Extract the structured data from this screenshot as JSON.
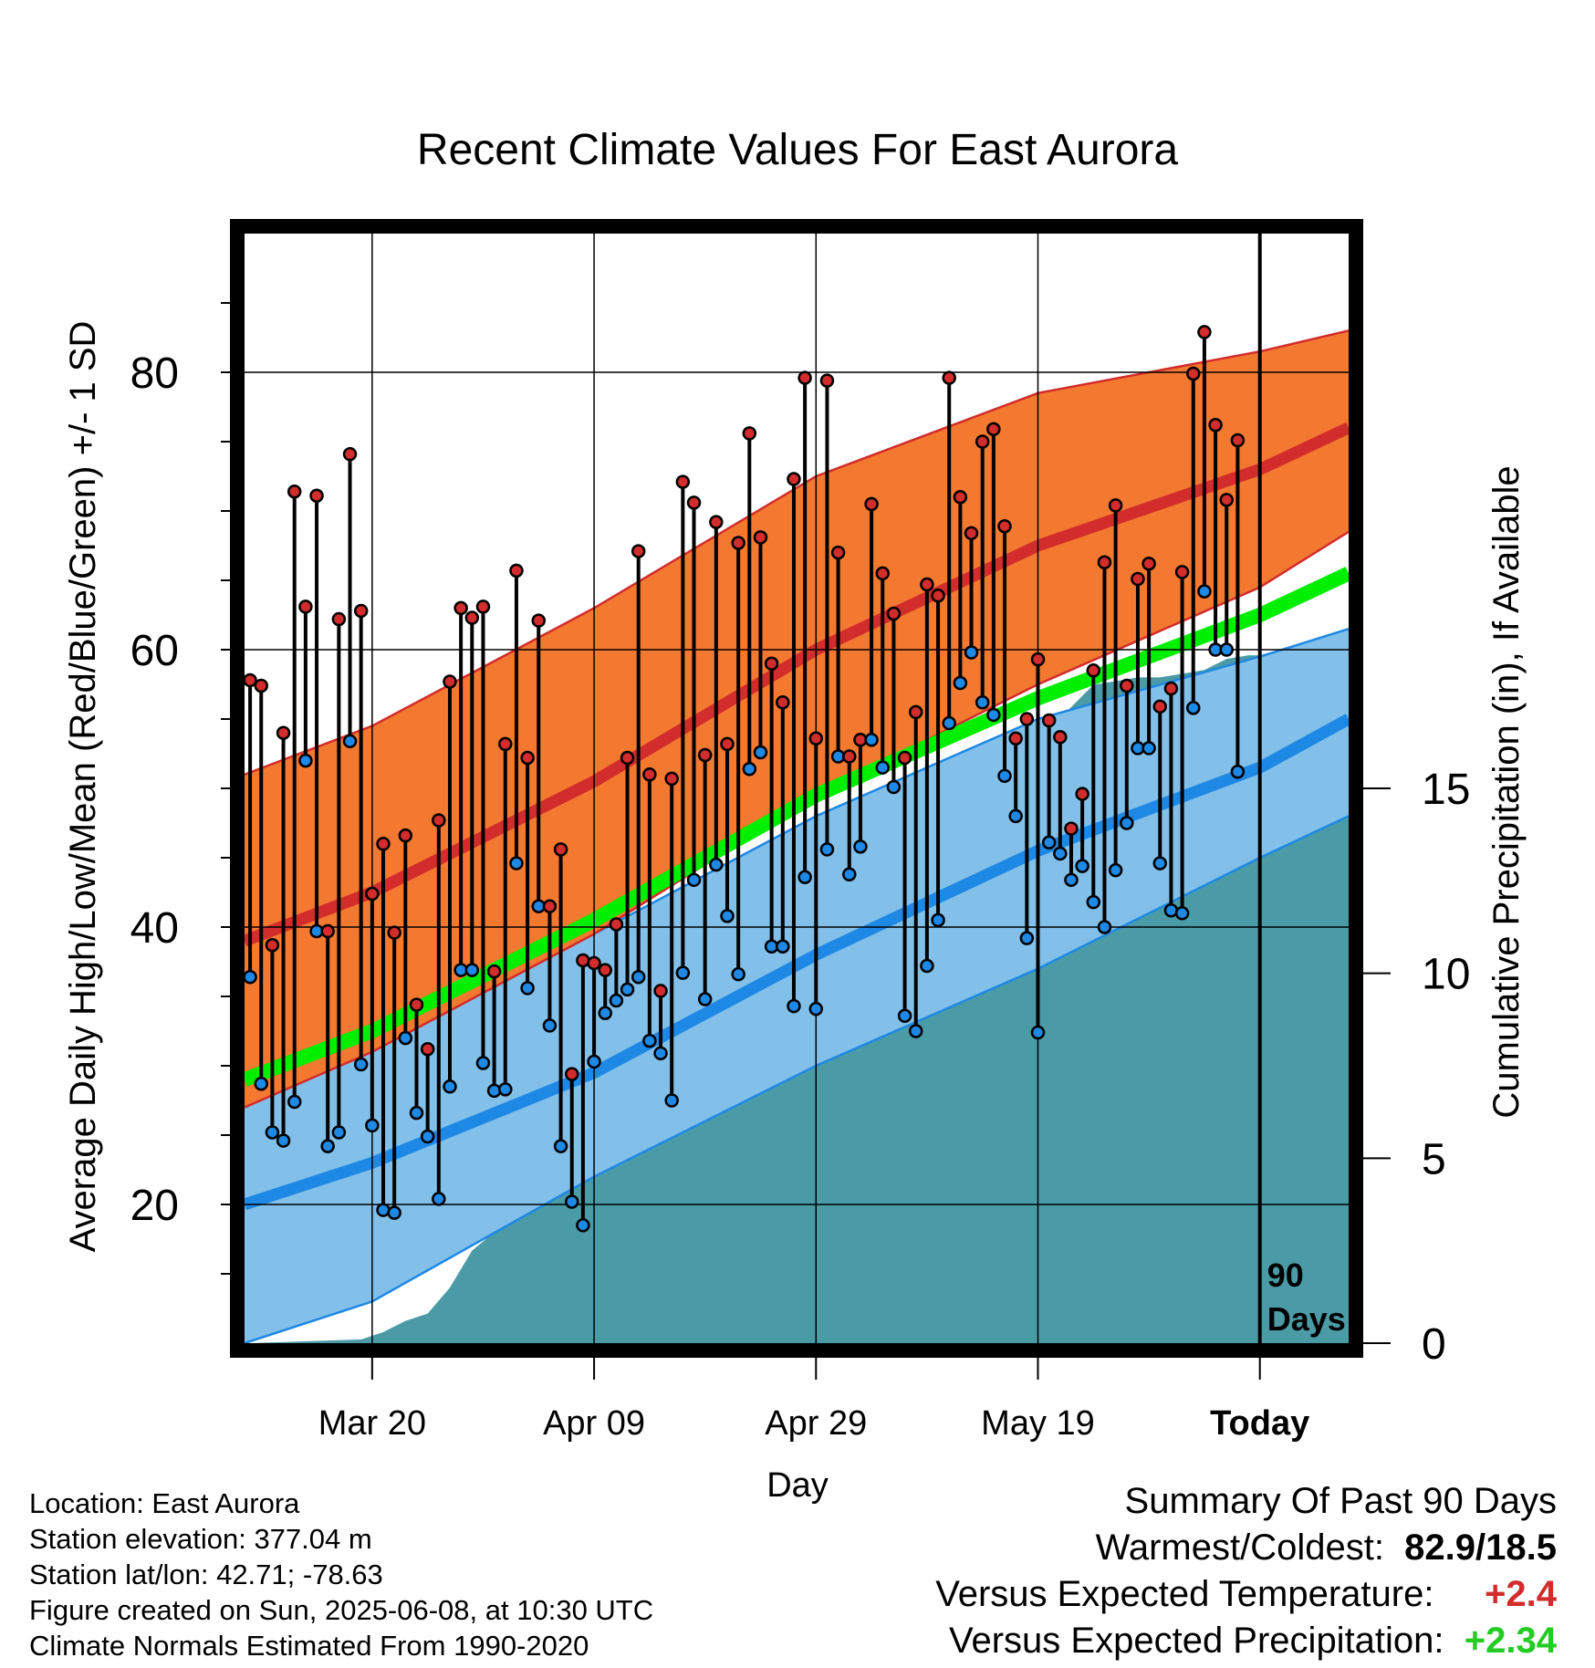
{
  "chart_data": {
    "type": "line",
    "title": "Recent Climate Values For East Aurora",
    "xlabel": "Day",
    "ylabel": "Average Daily High/Low/Mean (Red/Blue/Green) +/- 1 SD",
    "y2label": "Cumulative Precipitation (in), If Available",
    "ylim": [
      10,
      90
    ],
    "y2lim": [
      0,
      30
    ],
    "yticks": [
      20,
      40,
      60,
      80
    ],
    "y2ticks": [
      0,
      5,
      10,
      15
    ],
    "xticks": [
      {
        "day": 15,
        "label": "Mar 20"
      },
      {
        "day": 35,
        "label": "Apr 09"
      },
      {
        "day": 55,
        "label": "Apr 29"
      },
      {
        "day": 75,
        "label": "May 19"
      },
      {
        "day": 95,
        "label": "Today"
      }
    ],
    "x_range_days": [
      3.5,
      103
    ],
    "today_day": 95,
    "today_label_line1": "90",
    "today_label_line2": "Days",
    "grid": true,
    "colors": {
      "high_band": "#f47930",
      "high_band_edge": "#d22c2c",
      "normal_high": "#d22c2c",
      "low_band": "#82c0e9",
      "low_band_edge": "#1e88e5",
      "normal_low": "#1e88e5",
      "normal_mean": "#00ee00",
      "precip": "#4a9ba6",
      "high_dot": "#d22c2c",
      "low_dot": "#1e88e5"
    },
    "normals": {
      "days": [
        3.5,
        15,
        35,
        55,
        75,
        95,
        103
      ],
      "high_mean": [
        39,
        42.5,
        50.5,
        60,
        67.5,
        73,
        76
      ],
      "high_upper": [
        51,
        54.5,
        63,
        72.5,
        78.5,
        81.5,
        83
      ],
      "high_lower": [
        27,
        31,
        39.5,
        49.5,
        57.5,
        64.5,
        68.5
      ],
      "low_mean": [
        20,
        23,
        29.5,
        38,
        45.5,
        51.5,
        55
      ],
      "low_upper": [
        31,
        33,
        39.5,
        48,
        55,
        59.5,
        61.5
      ],
      "low_lower": [
        10,
        13,
        22,
        30,
        37,
        45,
        48
      ],
      "avg_mean": [
        29,
        32.5,
        40.5,
        49.5,
        56.5,
        62.5,
        65.5
      ]
    },
    "series": [
      {
        "name": "High",
        "x": [
          4,
          5,
          6,
          7,
          8,
          9,
          10,
          11,
          12,
          13,
          14,
          15,
          16,
          17,
          18,
          19,
          20,
          21,
          22,
          23,
          24,
          25,
          26,
          27,
          28,
          29,
          30,
          31,
          32,
          33,
          34,
          35,
          36,
          37,
          38,
          39,
          40,
          41,
          42,
          43,
          44,
          45,
          46,
          47,
          48,
          49,
          50,
          51,
          52,
          53,
          54,
          55,
          56,
          57,
          58,
          59,
          60,
          61,
          62,
          63,
          64,
          65,
          66,
          67,
          68,
          69,
          70,
          71,
          72,
          73,
          74,
          75,
          76,
          77,
          78,
          79,
          80,
          81,
          82,
          83,
          84,
          85,
          86,
          87,
          88,
          89,
          90,
          91,
          92,
          93
        ],
        "values": [
          57.8,
          57.4,
          38.7,
          54,
          71.4,
          63.1,
          71.1,
          39.7,
          62.2,
          74.1,
          62.8,
          42.4,
          46,
          39.6,
          46.6,
          34.4,
          31.2,
          47.7,
          57.7,
          63,
          62.3,
          63.1,
          36.8,
          53.2,
          65.7,
          52.2,
          62.1,
          41.5,
          45.6,
          29.4,
          37.6,
          37.4,
          36.9,
          40.2,
          52.2,
          67.1,
          51,
          35.4,
          50.7,
          72.1,
          70.6,
          52.4,
          69.2,
          53.2,
          67.7,
          75.6,
          68.1,
          59,
          56.2,
          72.3,
          79.6,
          53.6,
          79.4,
          67,
          52.3,
          53.5,
          70.5,
          65.5,
          62.6,
          52.2,
          55.5,
          64.7,
          63.9,
          79.6,
          71,
          68.4,
          75,
          75.9,
          68.9,
          53.6,
          55,
          59.3,
          54.9,
          53.7,
          47.1,
          49.6,
          58.5,
          66.3,
          70.4,
          57.4,
          65.1,
          66.2,
          55.9,
          57.2,
          65.6,
          79.9,
          82.9,
          76.2,
          70.8,
          75.1
        ]
      },
      {
        "name": "Low",
        "x": [
          4,
          5,
          6,
          7,
          8,
          9,
          10,
          11,
          12,
          13,
          14,
          15,
          16,
          17,
          18,
          19,
          20,
          21,
          22,
          23,
          24,
          25,
          26,
          27,
          28,
          29,
          30,
          31,
          32,
          33,
          34,
          35,
          36,
          37,
          38,
          39,
          40,
          41,
          42,
          43,
          44,
          45,
          46,
          47,
          48,
          49,
          50,
          51,
          52,
          53,
          54,
          55,
          56,
          57,
          58,
          59,
          60,
          61,
          62,
          63,
          64,
          65,
          66,
          67,
          68,
          69,
          70,
          71,
          72,
          73,
          74,
          75,
          76,
          77,
          78,
          79,
          80,
          81,
          82,
          83,
          84,
          85,
          86,
          87,
          88,
          89,
          90,
          91,
          92,
          93
        ],
        "values": [
          36.4,
          28.7,
          25.2,
          24.6,
          27.4,
          52,
          39.7,
          24.2,
          25.2,
          53.4,
          30.1,
          25.7,
          19.6,
          19.4,
          32,
          26.6,
          24.9,
          20.4,
          28.5,
          36.9,
          36.9,
          30.2,
          28.2,
          28.3,
          44.6,
          35.6,
          41.5,
          32.9,
          24.2,
          20.2,
          18.5,
          30.3,
          33.8,
          34.7,
          35.5,
          36.4,
          31.8,
          30.9,
          27.5,
          36.7,
          43.4,
          34.8,
          44.5,
          40.8,
          36.6,
          51.4,
          52.6,
          38.6,
          38.6,
          34.3,
          43.6,
          34.1,
          45.6,
          52.3,
          43.8,
          45.8,
          53.5,
          51.5,
          50.1,
          33.6,
          32.5,
          37.2,
          40.5,
          54.7,
          57.6,
          59.8,
          56.2,
          55.3,
          50.9,
          48,
          39.2,
          32.4,
          46.1,
          45.3,
          43.4,
          44.4,
          41.8,
          40,
          44.1,
          47.5,
          52.9,
          52.9,
          44.6,
          41.2,
          41,
          55.8,
          64.2,
          60,
          60,
          51.2
        ]
      }
    ],
    "precip": {
      "x": [
        4,
        14,
        16,
        18,
        20,
        22,
        24,
        26,
        28,
        30,
        31,
        32,
        34,
        36,
        38,
        40,
        42,
        44,
        46,
        48,
        50,
        52,
        54,
        56,
        57,
        58,
        60,
        62,
        64,
        66,
        68,
        70,
        72,
        74,
        76,
        78,
        80,
        82,
        84,
        86,
        88,
        90,
        92,
        94,
        103
      ],
      "values": [
        0,
        0.1,
        0.3,
        0.6,
        0.8,
        1.5,
        2.5,
        3,
        4.2,
        4.8,
        5,
        5.1,
        5.2,
        5.5,
        5.6,
        5.7,
        5.8,
        6.5,
        6.8,
        6.8,
        7.2,
        7.5,
        7.8,
        8.5,
        9.1,
        9.6,
        10.3,
        10.8,
        11.2,
        11.3,
        11.5,
        13.2,
        15.5,
        16,
        16.6,
        17.2,
        17.8,
        17.9,
        18,
        18,
        18.1,
        18.2,
        18.5,
        18.6,
        18.6
      ]
    }
  },
  "info": {
    "location": "Location: East Aurora",
    "elevation": "Station elevation: 377.04 m",
    "latlon": "Station lat/lon: 42.71; -78.63",
    "created": "Figure created on Sun, 2025-06-08, at 10:30 UTC",
    "normals": "Climate Normals Estimated From 1990-2020"
  },
  "summary": {
    "title": "Summary Of Past 90 Days",
    "warmest_coldest_label": "Warmest/Coldest:",
    "warmest_coldest_value": "82.9/18.5",
    "temp_label": "Versus Expected Temperature:",
    "temp_value": "+2.4",
    "temp_color": "#d22c2c",
    "precip_label": "Versus Expected Precipitation:",
    "precip_value": "+2.34",
    "precip_color": "#22cc22"
  }
}
